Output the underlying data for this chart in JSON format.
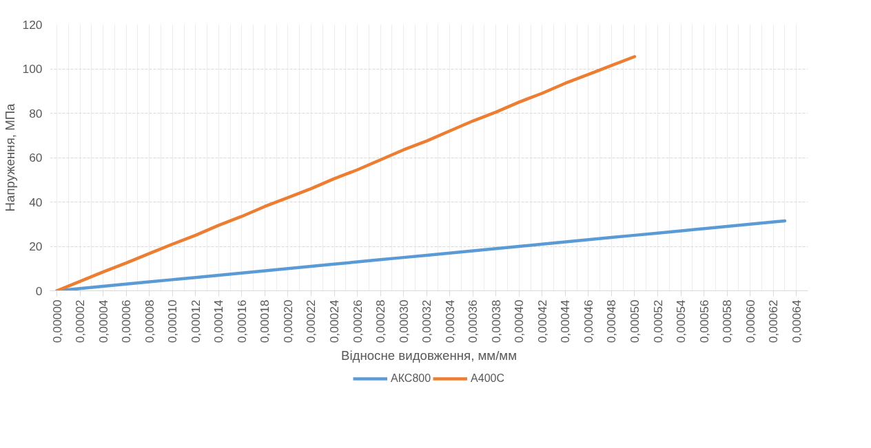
{
  "chart_data": {
    "type": "line",
    "xlabel": "Відносне видовження, мм/мм",
    "ylabel": "Напруження, МПа",
    "xlim": [
      -6e-06,
      0.00065
    ],
    "ylim": [
      0,
      120
    ],
    "xticks": [
      {
        "value": 0,
        "label": "0,00000"
      },
      {
        "value": 2e-05,
        "label": "0,00002"
      },
      {
        "value": 4e-05,
        "label": "0,00004"
      },
      {
        "value": 6e-05,
        "label": "0,00006"
      },
      {
        "value": 8e-05,
        "label": "0,00008"
      },
      {
        "value": 0.0001,
        "label": "0,00010"
      },
      {
        "value": 0.00012,
        "label": "0,00012"
      },
      {
        "value": 0.00014,
        "label": "0,00014"
      },
      {
        "value": 0.00016,
        "label": "0,00016"
      },
      {
        "value": 0.00018,
        "label": "0,00018"
      },
      {
        "value": 0.0002,
        "label": "0,00020"
      },
      {
        "value": 0.00022,
        "label": "0,00022"
      },
      {
        "value": 0.00024,
        "label": "0,00024"
      },
      {
        "value": 0.00026,
        "label": "0,00026"
      },
      {
        "value": 0.00028,
        "label": "0,00028"
      },
      {
        "value": 0.0003,
        "label": "0,00030"
      },
      {
        "value": 0.00032,
        "label": "0,00032"
      },
      {
        "value": 0.00034,
        "label": "0,00034"
      },
      {
        "value": 0.00036,
        "label": "0,00036"
      },
      {
        "value": 0.00038,
        "label": "0,00038"
      },
      {
        "value": 0.0004,
        "label": "0,00040"
      },
      {
        "value": 0.00042,
        "label": "0,00042"
      },
      {
        "value": 0.00044,
        "label": "0,00044"
      },
      {
        "value": 0.00046,
        "label": "0,00046"
      },
      {
        "value": 0.00048,
        "label": "0,00048"
      },
      {
        "value": 0.0005,
        "label": "0,00050"
      },
      {
        "value": 0.00052,
        "label": "0,00052"
      },
      {
        "value": 0.00054,
        "label": "0,00054"
      },
      {
        "value": 0.00056,
        "label": "0,00056"
      },
      {
        "value": 0.00058,
        "label": "0,00058"
      },
      {
        "value": 0.0006,
        "label": "0,00060"
      },
      {
        "value": 0.00062,
        "label": "0,00062"
      },
      {
        "value": 0.00064,
        "label": "0,00064"
      }
    ],
    "yticks": [
      0,
      20,
      40,
      60,
      80,
      100,
      120
    ],
    "grid": true,
    "legend": "bottom",
    "marker": "none",
    "line_style": "solid",
    "series": [
      {
        "name": "АКС800",
        "color": "#5b9bd5",
        "x": [
          0,
          2e-05,
          4e-05,
          6e-05,
          8e-05,
          0.0001,
          0.00012,
          0.00014,
          0.00016,
          0.00018,
          0.0002,
          0.00022,
          0.00024,
          0.00026,
          0.00028,
          0.0003,
          0.00032,
          0.00034,
          0.00036,
          0.00038,
          0.0004,
          0.00042,
          0.00044,
          0.00046,
          0.00048,
          0.0005,
          0.00052,
          0.00054,
          0.00056,
          0.00058,
          0.0006,
          0.00062,
          0.00063
        ],
        "values": [
          0,
          1,
          2,
          3,
          4,
          5,
          6,
          7,
          8,
          9,
          10,
          11,
          12,
          13,
          14,
          15,
          16,
          17,
          18,
          19,
          20,
          21,
          22,
          23,
          24,
          25,
          26,
          27,
          28,
          29,
          30,
          31,
          31.5
        ]
      },
      {
        "name": "А400С",
        "color": "#ed7d31",
        "x": [
          0,
          2e-05,
          4e-05,
          6e-05,
          8e-05,
          0.0001,
          0.00012,
          0.00014,
          0.00016,
          0.00018,
          0.0002,
          0.00022,
          0.00024,
          0.00026,
          0.00028,
          0.0003,
          0.00032,
          0.00034,
          0.00036,
          0.00038,
          0.0004,
          0.00042,
          0.00044,
          0.00046,
          0.00048,
          0.0005
        ],
        "values": [
          0,
          4.2,
          8.5,
          12.5,
          16.8,
          21,
          25,
          29.5,
          33.5,
          38,
          42,
          46,
          50.5,
          54.5,
          59,
          63.5,
          67.5,
          72,
          76.5,
          80.5,
          85,
          89,
          93.5,
          97.5,
          101.5,
          105.5
        ]
      }
    ]
  }
}
